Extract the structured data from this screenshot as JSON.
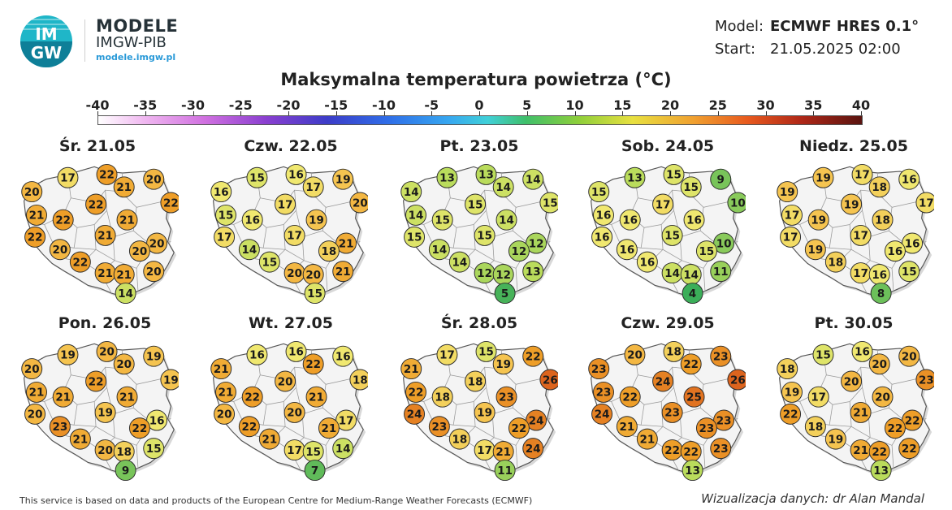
{
  "logo": {
    "letters_top": "IM",
    "letters_bottom": "GW"
  },
  "brand": {
    "line1": "MODELE",
    "line2": "IMGW-PIB",
    "url": "modele.imgw.pl"
  },
  "meta": {
    "model_label": "Model:",
    "model_value": "ECMWF HRES 0.1°",
    "start_label": "Start:",
    "start_value": "21.05.2025 02:00"
  },
  "title": "Maksymalna temperatura powietrza (°C)",
  "scale_ticks": [
    "-40",
    "-35",
    "-30",
    "-25",
    "-20",
    "-15",
    "-10",
    "-5",
    "0",
    "5",
    "10",
    "15",
    "20",
    "25",
    "30",
    "35",
    "40"
  ],
  "days": [
    {
      "label": "Śr. 21.05",
      "values": [
        17,
        22,
        20,
        20,
        21,
        22,
        21,
        22,
        22,
        21,
        22,
        21,
        20,
        20,
        22,
        20,
        21,
        21,
        20,
        14
      ]
    },
    {
      "label": "Czw. 22.05",
      "values": [
        15,
        16,
        19,
        16,
        17,
        20,
        15,
        16,
        17,
        19,
        17,
        17,
        14,
        21,
        15,
        18,
        20,
        20,
        21,
        15
      ]
    },
    {
      "label": "Pt. 23.05",
      "values": [
        13,
        13,
        14,
        14,
        14,
        15,
        14,
        15,
        15,
        14,
        15,
        15,
        14,
        12,
        14,
        12,
        12,
        12,
        13,
        5
      ]
    },
    {
      "label": "Sob. 24.05",
      "values": [
        13,
        15,
        9,
        15,
        15,
        10,
        16,
        16,
        17,
        16,
        16,
        15,
        16,
        10,
        16,
        15,
        14,
        14,
        11,
        4
      ]
    },
    {
      "label": "Niedz. 25.05",
      "values": [
        19,
        17,
        16,
        19,
        18,
        17,
        17,
        19,
        19,
        18,
        17,
        17,
        19,
        16,
        18,
        16,
        17,
        16,
        15,
        8
      ]
    },
    {
      "label": "Pon. 26.05",
      "values": [
        19,
        20,
        19,
        20,
        20,
        19,
        21,
        21,
        22,
        21,
        20,
        19,
        23,
        16,
        21,
        22,
        20,
        18,
        15,
        9
      ]
    },
    {
      "label": "Wt. 27.05",
      "values": [
        16,
        16,
        16,
        21,
        22,
        18,
        21,
        22,
        20,
        21,
        20,
        20,
        22,
        17,
        21,
        21,
        17,
        15,
        14,
        7
      ]
    },
    {
      "label": "Śr. 28.05",
      "values": [
        17,
        15,
        22,
        21,
        19,
        26,
        22,
        18,
        18,
        23,
        24,
        19,
        23,
        24,
        18,
        22,
        17,
        21,
        24,
        11
      ]
    },
    {
      "label": "Czw. 29.05",
      "values": [
        20,
        18,
        23,
        23,
        22,
        26,
        23,
        22,
        24,
        25,
        24,
        23,
        21,
        23,
        21,
        23,
        22,
        22,
        23,
        13
      ]
    },
    {
      "label": "Pt. 30.05",
      "values": [
        15,
        16,
        20,
        18,
        20,
        23,
        19,
        17,
        20,
        20,
        22,
        21,
        18,
        22,
        19,
        22,
        21,
        22,
        22,
        13
      ]
    }
  ],
  "footer": {
    "left": "This service is based on data and products of the European Centre for Medium-Range Weather Forecasts (ECMWF)",
    "right": "Wizualizacja danych: dr Alan Mandal"
  }
}
